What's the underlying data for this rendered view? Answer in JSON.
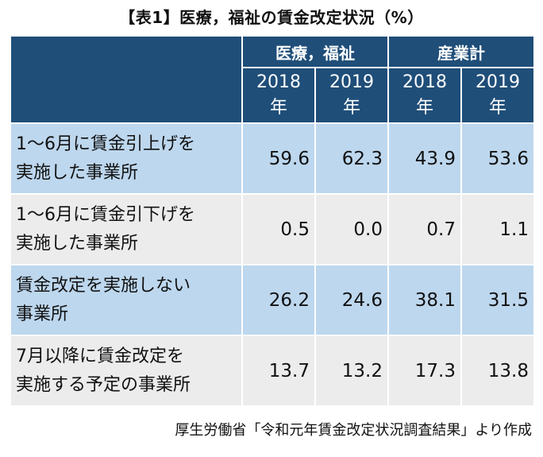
{
  "chart_data": {
    "type": "table",
    "title": "【表1】医療，福祉の賃金改定状況（%）",
    "column_groups": [
      "医療，福祉",
      "産業計"
    ],
    "columns": [
      "2018\n年",
      "2019\n年",
      "2018\n年",
      "2019\n年"
    ],
    "rows": [
      {
        "label": "1～6月に賃金引上げを\n実施した事業所",
        "values": [
          "59.6",
          "62.3",
          "43.9",
          "53.6"
        ]
      },
      {
        "label": "1～6月に賃金引下げを\n実施した事業所",
        "values": [
          "0.5",
          "0.0",
          "0.7",
          "1.1"
        ]
      },
      {
        "label": "賃金改定を実施しない\n事業所",
        "values": [
          "26.2",
          "24.6",
          "38.1",
          "31.5"
        ]
      },
      {
        "label": "7月以降に賃金改定を\n実施する予定の事業所",
        "values": [
          "13.7",
          "13.2",
          "17.3",
          "13.8"
        ]
      }
    ],
    "source": "厚生労働省「令和元年賃金改定状況調査結果」より作成"
  },
  "colors": {
    "header": "#1f4e79",
    "row_blue": "#bdd7ee",
    "row_gray": "#ececec"
  }
}
